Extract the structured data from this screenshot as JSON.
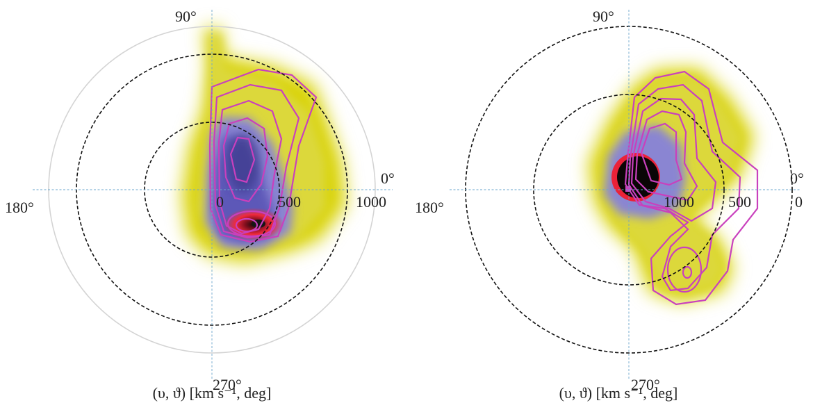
{
  "chart_data": [
    {
      "type": "heatmap",
      "projection": "polar",
      "xlabel": "(υ, ϑ) [km s⁻¹, deg]",
      "angular_ticks": [
        "90°",
        "0°",
        "180°",
        "270°"
      ],
      "radial_ticks": [
        "0",
        "500",
        "1000"
      ],
      "radial_ticks_direction": "increasing outward",
      "reference_circles": [
        500,
        1000
      ],
      "outer_boundary": 1200,
      "colormap": [
        "yellow",
        "blue-violet",
        "red",
        "black"
      ],
      "contour_color": "#c940bd",
      "density_peak": {
        "speed": 400,
        "angle": 315
      }
    },
    {
      "type": "heatmap",
      "projection": "polar",
      "xlabel": "(υ, ϑ) [km s⁻¹, deg]",
      "angular_ticks": [
        "90°",
        "0°",
        "180°",
        "270°"
      ],
      "radial_ticks": [
        "1000",
        "500",
        "0"
      ],
      "radial_ticks_direction": "decreasing outward",
      "reference_circles": [
        1000,
        500
      ],
      "colormap": [
        "yellow",
        "blue-violet",
        "red",
        "black"
      ],
      "contour_color": "#c940bd",
      "density_peak": {
        "speed": 1200,
        "angle": 90
      }
    }
  ]
}
